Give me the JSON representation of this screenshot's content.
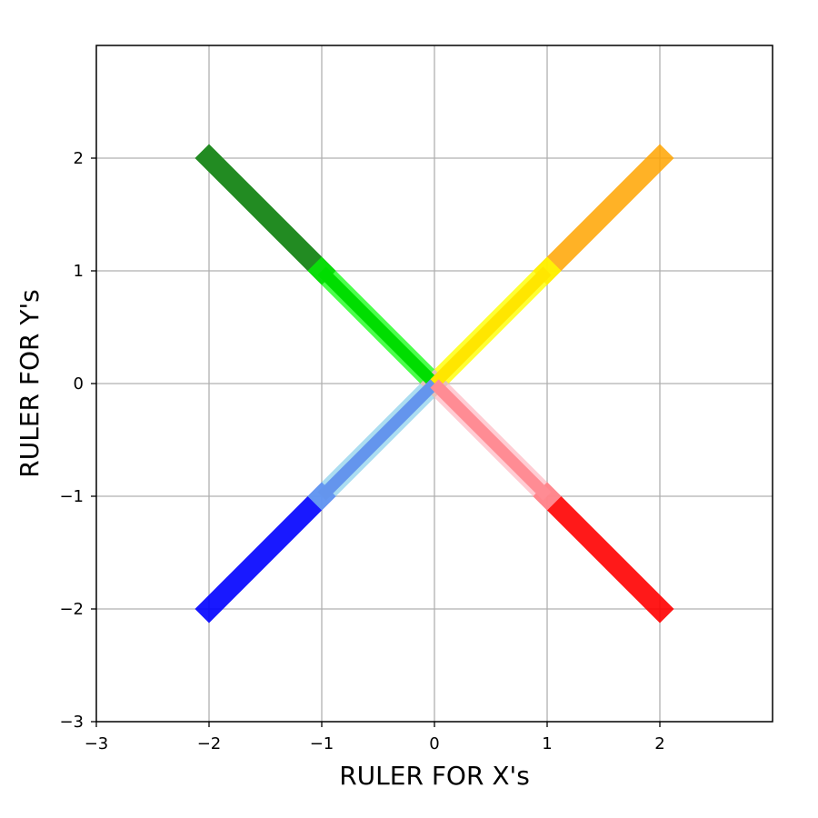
{
  "chart_data": {
    "type": "line",
    "title": "",
    "xlabel": "RULER FOR X's",
    "ylabel": "RULER FOR Y's",
    "xlim": [
      -3,
      3
    ],
    "ylim": [
      -3,
      3
    ],
    "xticks": [
      -3,
      -2,
      -1,
      0,
      1,
      2
    ],
    "yticks": [
      -3,
      -2,
      -1,
      0,
      1,
      2
    ],
    "xtick_labels": [
      "−3",
      "−2",
      "−1",
      "0",
      "1",
      "2"
    ],
    "ytick_labels": [
      "−3",
      "−2",
      "−1",
      "0",
      "1",
      "2"
    ],
    "grid": true,
    "series": [
      {
        "x": [
          -2,
          -1
        ],
        "y": [
          2,
          1
        ],
        "color": "#228B22",
        "alpha": 1.0
      },
      {
        "x": [
          -1,
          0
        ],
        "y": [
          1,
          0
        ],
        "color": "#00FF00",
        "alpha": 0.7
      },
      {
        "x": [
          2,
          1
        ],
        "y": [
          2,
          1
        ],
        "color": "#FFA500",
        "alpha": 0.85
      },
      {
        "x": [
          1,
          0
        ],
        "y": [
          1,
          0
        ],
        "color": "#FFFF00",
        "alpha": 0.8
      },
      {
        "x": [
          -2,
          -1
        ],
        "y": [
          -2,
          -1
        ],
        "color": "#0000FF",
        "alpha": 0.9
      },
      {
        "x": [
          -1,
          0
        ],
        "y": [
          -1,
          0
        ],
        "color": "#87CEEB",
        "alpha": 0.7
      },
      {
        "x": [
          2,
          1
        ],
        "y": [
          -2,
          -1
        ],
        "color": "#FF0000",
        "alpha": 0.9
      },
      {
        "x": [
          1,
          0
        ],
        "y": [
          -1,
          0
        ],
        "color": "#FFB6C1",
        "alpha": 0.7
      }
    ],
    "overlaps": [
      {
        "x": [
          -1,
          0
        ],
        "y": [
          1,
          0
        ],
        "color": "#00DD00"
      },
      {
        "x": [
          1,
          0
        ],
        "y": [
          1,
          0
        ],
        "color": "#FFE600"
      },
      {
        "x": [
          -1,
          0
        ],
        "y": [
          -1,
          0
        ],
        "color": "#6495ED"
      },
      {
        "x": [
          1,
          0
        ],
        "y": [
          -1,
          0
        ],
        "color": "#FF8C94"
      }
    ]
  }
}
